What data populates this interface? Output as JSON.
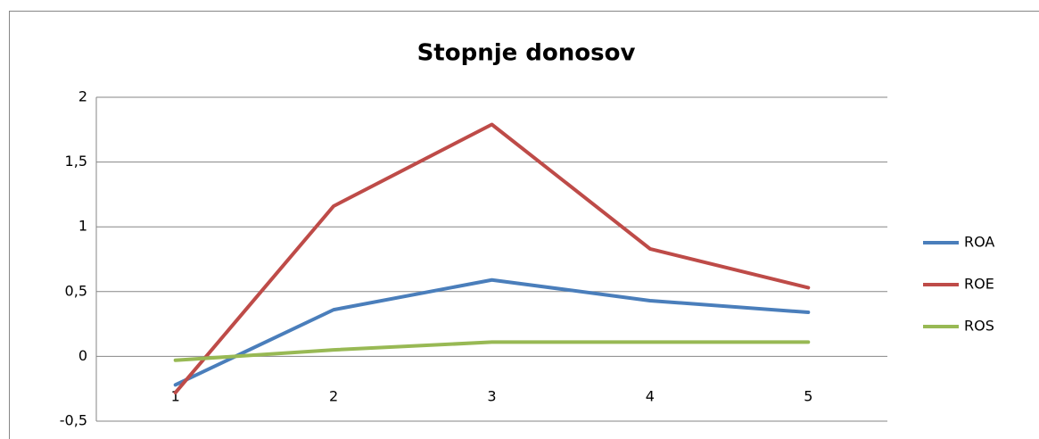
{
  "chart_data": {
    "type": "line",
    "title": "Stopnje donosov",
    "categories": [
      "1",
      "2",
      "3",
      "4",
      "5"
    ],
    "series": [
      {
        "name": "ROA",
        "color": "#4a7ebb",
        "values": [
          -0.22,
          0.36,
          0.59,
          0.43,
          0.34
        ]
      },
      {
        "name": "ROE",
        "color": "#be4b48",
        "values": [
          -0.28,
          1.16,
          1.79,
          0.83,
          0.53
        ]
      },
      {
        "name": "ROS",
        "color": "#98b954",
        "values": [
          -0.03,
          0.05,
          0.11,
          0.11,
          0.11
        ]
      }
    ],
    "ylim": [
      -0.5,
      2
    ],
    "yticks": [
      {
        "value": -0.5,
        "label": "-0,5"
      },
      0,
      {
        "value": 0.5,
        "label": "0,5"
      },
      1,
      {
        "value": 1.5,
        "label": "1,5"
      },
      2
    ],
    "grid": true,
    "legend": "right"
  }
}
